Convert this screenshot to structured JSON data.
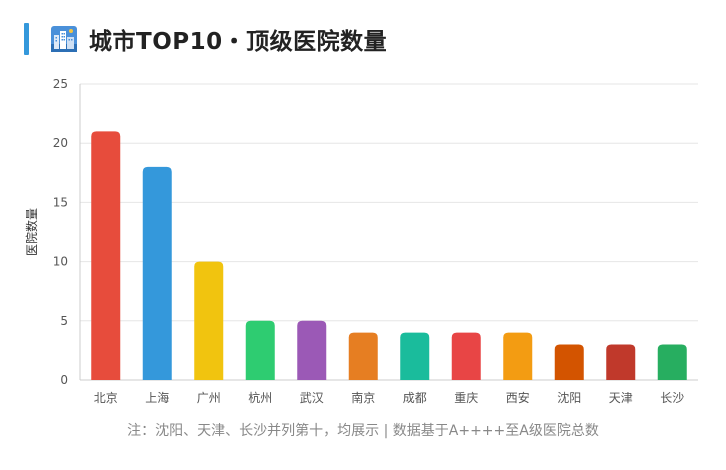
{
  "header": {
    "title": "城市TOP10・顶级医院数量",
    "icon": "city-skyline-icon"
  },
  "chart_data": {
    "type": "bar",
    "categories": [
      "北京",
      "上海",
      "广州",
      "杭州",
      "武汉",
      "南京",
      "成都",
      "重庆",
      "西安",
      "沈阳",
      "天津",
      "长沙"
    ],
    "values": [
      21,
      18,
      10,
      5,
      5,
      4,
      4,
      4,
      4,
      3,
      3,
      3
    ],
    "colors": [
      "#e74c3c",
      "#3498db",
      "#f1c40f",
      "#2ecc71",
      "#9b59b6",
      "#e67e22",
      "#1abc9c",
      "#e84545",
      "#f39c12",
      "#d35400",
      "#c0392b",
      "#27ae60"
    ],
    "ylabel": "医院数量",
    "xlabel": "",
    "ylim": [
      0,
      25
    ],
    "yticks": [
      0,
      5,
      10,
      15,
      20,
      25
    ],
    "grid": true,
    "legend": "none"
  },
  "footer": {
    "note": "注：沈阳、天津、长沙并列第十，均展示 | 数据基于A++++至A级医院总数"
  }
}
